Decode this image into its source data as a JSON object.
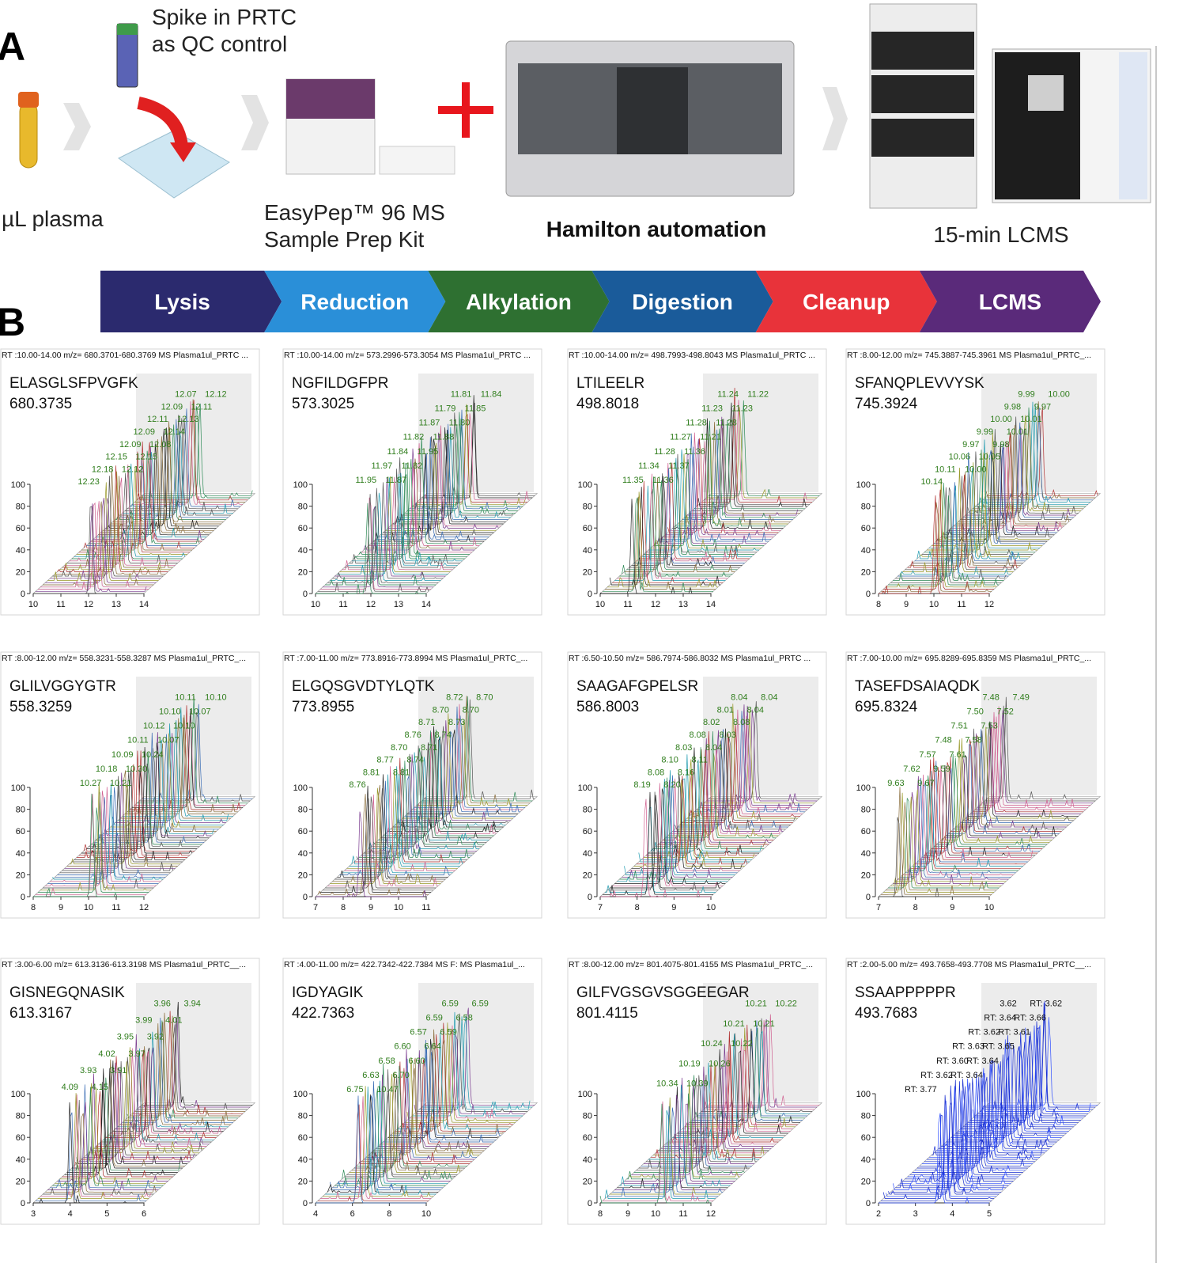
{
  "panel_a": {
    "label": "A",
    "steps": [
      {
        "lines": [
          "µL plasma"
        ]
      },
      {
        "lines": [
          "Spike in PRTC",
          "as QC control"
        ]
      },
      {
        "lines": [
          "EasyPep™ 96 MS",
          "Sample Prep Kit"
        ]
      },
      {
        "lines": [
          "Hamilton automation"
        ]
      },
      {
        "lines": [
          "15-min LCMS"
        ]
      }
    ]
  },
  "panel_b": {
    "label": "B",
    "workflow": [
      "Lysis",
      "Reduction",
      "Alkylation",
      "Digestion",
      "Cleanup",
      "LCMS"
    ],
    "plots": [
      {
        "header": "RT :10.00-14.00 m/z= 680.3701-680.3769 MS  Plasma1ul_PRTC ...",
        "peptide": "ELASGLSFPVGFK",
        "mz": "680.3735",
        "xticks": [
          10,
          11,
          12,
          13,
          14
        ],
        "yticks": [
          0,
          20,
          40,
          60,
          80,
          100
        ],
        "peak_labels": [
          "12.07",
          "12.12",
          "12.09",
          "12.11",
          "12.11",
          "12.13",
          "12.09",
          "12.14",
          "12.09",
          "12.08",
          "12.15",
          "12.15",
          "12.18",
          "12.12",
          "12.23"
        ]
      },
      {
        "header": "RT :10.00-14.00 m/z= 573.2996-573.3054 MS  Plasma1ul_PRTC ...",
        "peptide": "NGFILDGFPR",
        "mz": "573.3025",
        "xticks": [
          10,
          11,
          12,
          13,
          14
        ],
        "yticks": [
          0,
          20,
          40,
          60,
          80,
          100
        ],
        "peak_labels": [
          "11.81",
          "11.84",
          "11.79",
          "11.85",
          "11.87",
          "11.80",
          "11.82",
          "11.88",
          "11.84",
          "11.95",
          "11.97",
          "11.82",
          "11.95",
          "11.87"
        ]
      },
      {
        "header": "RT :10.00-14.00 m/z= 498.7993-498.8043 MS  Plasma1ul_PRTC ...",
        "peptide": "LTILEELR",
        "mz": "498.8018",
        "xticks": [
          10,
          11,
          12,
          13,
          14
        ],
        "yticks": [
          0,
          20,
          40,
          60,
          80,
          100
        ],
        "peak_labels": [
          "11.24",
          "11.22",
          "11.23",
          "11.23",
          "11.28",
          "11.28",
          "11.27",
          "11.21",
          "11.28",
          "11.36",
          "11.34",
          "11.37",
          "11.35",
          "11.36"
        ]
      },
      {
        "header": "RT :8.00-12.00 m/z= 745.3887-745.3961 MS  Plasma1ul_PRTC_...",
        "peptide": "SFANQPLEVVYSK",
        "mz": "745.3924",
        "xticks": [
          8,
          9,
          10,
          11,
          12
        ],
        "yticks": [
          0,
          20,
          40,
          60,
          80,
          100
        ],
        "peak_labels": [
          "9.99",
          "10.00",
          "9.98",
          "9.97",
          "10.00",
          "10.01",
          "9.99",
          "10.01",
          "9.97",
          "9.98",
          "10.06",
          "10.05",
          "10.11",
          "10.00",
          "10.14"
        ]
      },
      {
        "header": "RT :8.00-12.00 m/z= 558.3231-558.3287 MS  Plasma1ul_PRTC_...",
        "peptide": "GLILVGGYGTR",
        "mz": "558.3259",
        "xticks": [
          8,
          9,
          10,
          11,
          12
        ],
        "yticks": [
          0,
          20,
          40,
          60,
          80,
          100
        ],
        "peak_labels": [
          "10.11",
          "10.10",
          "10.10",
          "10.07",
          "10.12",
          "10.10",
          "10.11",
          "10.07",
          "10.09",
          "10.24",
          "10.18",
          "10.30",
          "10.27",
          "10.21"
        ]
      },
      {
        "header": "RT :7.00-11.00 m/z= 773.8916-773.8994 MS  Plasma1ul_PRTC_...",
        "peptide": "ELGQSGVDTYLQTK",
        "mz": "773.8955",
        "xticks": [
          7,
          8,
          9,
          10,
          11
        ],
        "yticks": [
          0,
          20,
          40,
          60,
          80,
          100
        ],
        "peak_labels": [
          "8.72",
          "8.70",
          "8.70",
          "8.70",
          "8.71",
          "8.73",
          "8.76",
          "8.74",
          "8.70",
          "8.71",
          "8.77",
          "8.74",
          "8.81",
          "8.81",
          "8.76"
        ]
      },
      {
        "header": "RT :6.50-10.50 m/z= 586.7974-586.8032 MS  Plasma1ul_PRTC ...",
        "peptide": "SAAGAFGPELSR",
        "mz": "586.8003",
        "xticks": [
          7,
          8,
          9,
          10
        ],
        "yticks": [
          0,
          20,
          40,
          60,
          80,
          100
        ],
        "peak_labels": [
          "8.04",
          "8.04",
          "8.01",
          "8.04",
          "8.02",
          "8.08",
          "8.08",
          "8.03",
          "8.03",
          "8.04",
          "8.10",
          "8.11",
          "8.08",
          "8.16",
          "8.19",
          "8.20"
        ]
      },
      {
        "header": "RT :7.00-10.00 m/z= 695.8289-695.8359 MS  Plasma1ul_PRTC_...",
        "peptide": "TASEFDSAIAQDK",
        "mz": "695.8324",
        "xticks": [
          7,
          8,
          9,
          10
        ],
        "yticks": [
          0,
          20,
          40,
          60,
          80,
          100
        ],
        "peak_labels": [
          "7.48",
          "7.49",
          "7.50",
          "7.52",
          "7.51",
          "7.53",
          "7.48",
          "7.58",
          "7.57",
          "7.61",
          "7.62",
          "9.59",
          "9.63",
          "9.67"
        ]
      },
      {
        "header": "RT :3.00-6.00 m/z= 613.3136-613.3198 MS  Plasma1ul_PRTC__...",
        "peptide": "GISNEGQNASIK",
        "mz": "613.3167",
        "xticks": [
          3,
          4,
          5,
          6
        ],
        "yticks": [
          0,
          20,
          40,
          60,
          80,
          100
        ],
        "peak_labels": [
          "3.96",
          "3.94",
          "3.99",
          "4.01",
          "3.95",
          "3.92",
          "4.02",
          "3.97",
          "3.93",
          "3.91",
          "4.09",
          "4.15"
        ]
      },
      {
        "header": "RT :4.00-11.00 m/z= 422.7342-422.7384 MS  F: MS Plasma1ul_...",
        "peptide": "IGDYAGIK",
        "mz": "422.7363",
        "xticks": [
          4,
          6,
          8,
          10
        ],
        "yticks": [
          0,
          20,
          40,
          60,
          80,
          100
        ],
        "peak_labels": [
          "6.59",
          "6.59",
          "6.59",
          "6.58",
          "6.57",
          "6.59",
          "6.60",
          "6.64",
          "6.58",
          "6.60",
          "6.63",
          "6.70",
          "6.75",
          "10.47"
        ]
      },
      {
        "header": "RT :8.00-12.00 m/z= 801.4075-801.4155 MS  Plasma1ul_PRTC_...",
        "peptide": "GILFVGSGVSGGEEGAR",
        "mz": "801.4115",
        "xticks": [
          8,
          9,
          10,
          11,
          12
        ],
        "yticks": [
          0,
          20,
          40,
          60,
          80,
          100
        ],
        "peak_labels": [
          "10.21",
          "10.22",
          "10.21",
          "10.21",
          "10.24",
          "10.22",
          "10.19",
          "10.26",
          "10.34",
          "10.39"
        ]
      },
      {
        "header": "RT :2.00-5.00 m/z= 493.7658-493.7708 MS  Plasma1ul_PRTC__...",
        "peptide": "SSAAPPPPPR",
        "mz": "493.7683",
        "xticks": [
          2,
          3,
          4,
          5
        ],
        "yticks": [
          0,
          20,
          40,
          60,
          80,
          100
        ],
        "peak_labels": [
          "3.62",
          "RT: 3.62",
          "RT: 3.64",
          "RT: 3.66",
          "RT: 3.62",
          "RT: 3.61",
          "RT: 3.63",
          "RT: 3.65",
          "RT: 3.60",
          "RT: 3.64",
          "RT: 3.62",
          "RT: 3.64",
          "RT: 3.77"
        ]
      }
    ]
  }
}
